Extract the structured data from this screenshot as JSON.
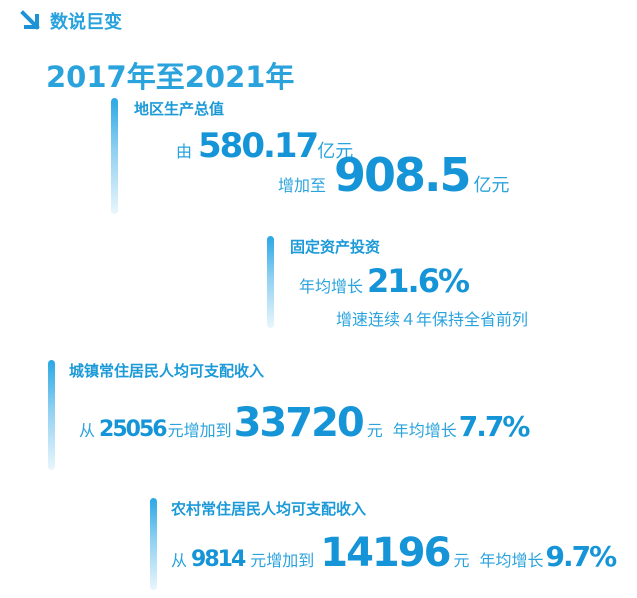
{
  "header": {
    "title": "数说巨变",
    "years": "2017年至2021年"
  },
  "gdp": {
    "label": "地区生产总值",
    "from_prefix": "由",
    "from_value": "580.17",
    "from_unit": "亿元",
    "to_prefix": "增加至",
    "to_value": "908.5",
    "to_unit": "亿元"
  },
  "investment": {
    "label": "固定资产投资",
    "prefix": "年均增长",
    "value": "21.6%",
    "note": "增速连续４年保持全省前列"
  },
  "urban": {
    "label": "城镇常住居民人均可支配收入",
    "from_prefix": "从",
    "from_value": "25056",
    "mid_text": "元增加到",
    "to_value": "33720",
    "to_unit": "元",
    "growth_prefix": "年均增长",
    "growth_value": "7.7%"
  },
  "rural": {
    "label": "农村常住居民人均可支配收入",
    "from_prefix": "从",
    "from_value": "9814",
    "mid_text": "元增加到",
    "to_value": "14196",
    "to_unit": "元",
    "growth_prefix": "年均增长",
    "growth_value": "9.7%"
  },
  "colors": {
    "accent": "#1595d7",
    "text": "#2aa3dd"
  }
}
